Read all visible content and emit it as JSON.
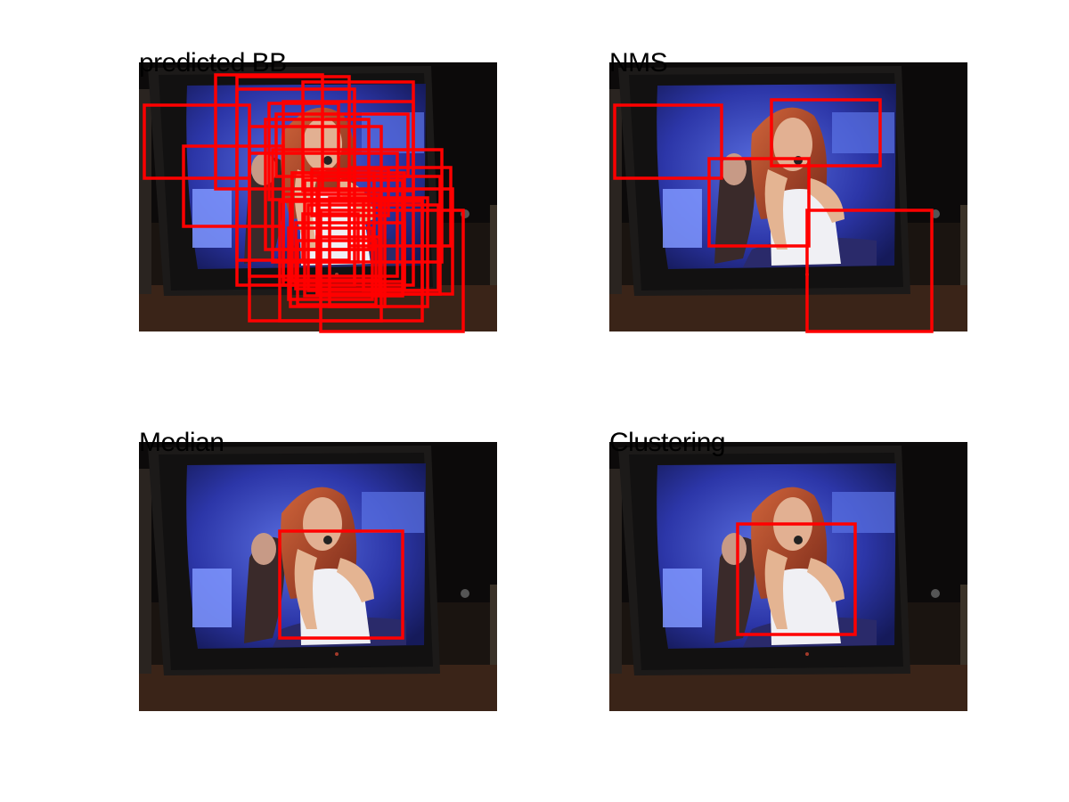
{
  "figure": {
    "panels": [
      {
        "id": "predicted",
        "title": "predicted BB"
      },
      {
        "id": "nms",
        "title": "NMS"
      },
      {
        "id": "median",
        "title": "Median"
      },
      {
        "id": "clustering",
        "title": "Clustering"
      }
    ]
  },
  "colors": {
    "box_stroke": "#ff0000",
    "background": "#ffffff",
    "tv_screen": "#3340b0",
    "tv_body": "#151313"
  },
  "image_size": [
    402,
    302
  ],
  "boxes": {
    "predicted": [
      [
        6,
        48,
        124,
        130
      ],
      [
        50,
        94,
        162,
        184
      ],
      [
        86,
        14,
        206,
        142
      ],
      [
        110,
        16,
        236,
        222
      ],
      [
        110,
        30,
        242,
        250
      ],
      [
        146,
        46,
        224,
        154
      ],
      [
        154,
        58,
        302,
        128
      ],
      [
        142,
        64,
        258,
        210
      ],
      [
        162,
        44,
        308,
        250
      ],
      [
        184,
        22,
        308,
        144
      ],
      [
        124,
        72,
        272,
        290
      ],
      [
        150,
        98,
        340,
        224
      ],
      [
        124,
        102,
        290,
        240
      ],
      [
        172,
        124,
        264,
        210
      ],
      [
        186,
        132,
        296,
        262
      ],
      [
        202,
        128,
        338,
        260
      ],
      [
        158,
        156,
        318,
        290
      ],
      [
        172,
        124,
        298,
        246
      ],
      [
        200,
        142,
        352,
        260
      ],
      [
        190,
        160,
        336,
        256
      ],
      [
        168,
        186,
        262,
        266
      ],
      [
        184,
        170,
        246,
        224
      ],
      [
        214,
        152,
        324,
        274
      ],
      [
        170,
        154,
        276,
        274
      ],
      [
        236,
        118,
        350,
        206
      ],
      [
        176,
        180,
        298,
        254
      ],
      [
        200,
        196,
        270,
        260
      ],
      [
        204,
        166,
        364,
        302
      ],
      [
        162,
        148,
        270,
        244
      ],
      [
        252,
        154,
        318,
        256
      ],
      [
        178,
        200,
        266,
        272
      ],
      [
        194,
        120,
        280,
        172
      ]
    ],
    "nms": [
      [
        6,
        48,
        126,
        130
      ],
      [
        182,
        42,
        304,
        116
      ],
      [
        112,
        108,
        224,
        206
      ],
      [
        222,
        166,
        362,
        302
      ]
    ],
    "median": [
      [
        158,
        100,
        296,
        220
      ]
    ],
    "clustering": [
      [
        144,
        92,
        276,
        216
      ]
    ]
  }
}
